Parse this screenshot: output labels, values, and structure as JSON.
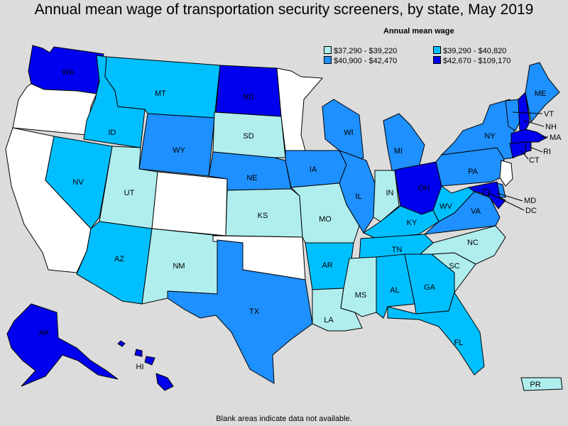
{
  "title": "Annual mean wage of transportation security screeners, by state, May 2019",
  "legend": {
    "title": "Annual mean wage",
    "items": [
      {
        "label": "$37,290 - $39,220",
        "color": "#b0eeee"
      },
      {
        "label": "$39,290 - $40,820",
        "color": "#00bfff"
      },
      {
        "label": "$40,900 - $42,470",
        "color": "#1e90ff"
      },
      {
        "label": "$42,670 - $109,170",
        "color": "#0000ee"
      }
    ],
    "no_data_color": "#ffffff"
  },
  "footnote": "Blank areas indicate data not available.",
  "states": {
    "WA": {
      "label": "WA",
      "tier": 3
    },
    "OR": {
      "label": "",
      "tier": null
    },
    "CA": {
      "label": "",
      "tier": null
    },
    "ID": {
      "label": "ID",
      "tier": 1
    },
    "NV": {
      "label": "NV",
      "tier": 1
    },
    "MT": {
      "label": "MT",
      "tier": 1
    },
    "WY": {
      "label": "WY",
      "tier": 2
    },
    "UT": {
      "label": "UT",
      "tier": 0
    },
    "CO": {
      "label": "",
      "tier": null
    },
    "AZ": {
      "label": "AZ",
      "tier": 1
    },
    "NM": {
      "label": "NM",
      "tier": 0
    },
    "ND": {
      "label": "ND",
      "tier": 3
    },
    "SD": {
      "label": "SD",
      "tier": 0
    },
    "NE": {
      "label": "NE",
      "tier": 2
    },
    "KS": {
      "label": "KS",
      "tier": 0
    },
    "OK": {
      "label": "",
      "tier": null
    },
    "TX": {
      "label": "TX",
      "tier": 2
    },
    "MN": {
      "label": "",
      "tier": null
    },
    "IA": {
      "label": "IA",
      "tier": 2
    },
    "MO": {
      "label": "MO",
      "tier": 0
    },
    "AR": {
      "label": "AR",
      "tier": 1
    },
    "LA": {
      "label": "LA",
      "tier": 0
    },
    "WI": {
      "label": "WI",
      "tier": 2
    },
    "IL": {
      "label": "IL",
      "tier": 2
    },
    "MI": {
      "label": "MI",
      "tier": 2
    },
    "IN": {
      "label": "IN",
      "tier": 0
    },
    "OH": {
      "label": "OH",
      "tier": 3
    },
    "KY": {
      "label": "KY",
      "tier": 1
    },
    "TN": {
      "label": "TN",
      "tier": 1
    },
    "MS": {
      "label": "MS",
      "tier": 0
    },
    "AL": {
      "label": "AL",
      "tier": 1
    },
    "GA": {
      "label": "GA",
      "tier": 1
    },
    "FL": {
      "label": "FL",
      "tier": 1
    },
    "SC": {
      "label": "SC",
      "tier": 0
    },
    "NC": {
      "label": "NC",
      "tier": 0
    },
    "VA": {
      "label": "VA",
      "tier": 2
    },
    "WV": {
      "label": "WV",
      "tier": 1
    },
    "PA": {
      "label": "PA",
      "tier": 2
    },
    "NY": {
      "label": "NY",
      "tier": 2
    },
    "VT": {
      "label": "VT",
      "tier": 2
    },
    "NH": {
      "label": "NH",
      "tier": 3
    },
    "ME": {
      "label": "ME",
      "tier": 2
    },
    "MA": {
      "label": "MA",
      "tier": 3
    },
    "RI": {
      "label": "RI",
      "tier": 3
    },
    "CT": {
      "label": "CT",
      "tier": 3
    },
    "NJ": {
      "label": "",
      "tier": null
    },
    "DE": {
      "label": "",
      "tier": 2
    },
    "MD": {
      "label": "MD",
      "tier": 3
    },
    "DC": {
      "label": "DC",
      "tier": 3
    },
    "AK": {
      "label": "AK",
      "tier": 3
    },
    "HI": {
      "label": "HI",
      "tier": 3
    },
    "PR": {
      "label": "PR",
      "tier": 0
    }
  }
}
